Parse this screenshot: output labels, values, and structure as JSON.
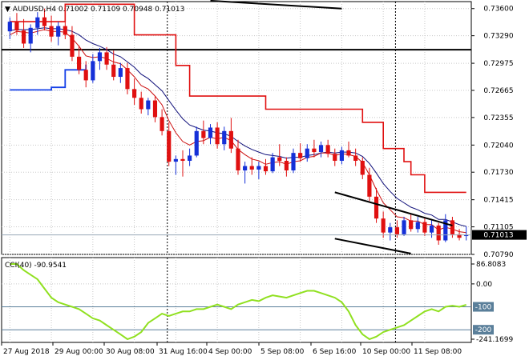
{
  "header": {
    "symbol": "AUDUSD,H4",
    "ohlc": "0.71002 0.71109 0.70948 0.71013"
  },
  "indicator": {
    "name": "CCI(40)",
    "value": "-90.9541",
    "scale_labels": [
      "86.8083",
      "0.00",
      "-100",
      "-200",
      "-241.1699"
    ]
  },
  "price_axis": {
    "labels": [
      "0.73600",
      "0.73290",
      "0.72975",
      "0.72665",
      "0.72355",
      "0.72040",
      "0.71730",
      "0.71415",
      "0.71105",
      "0.70790"
    ],
    "current_price": "0.71013"
  },
  "time_axis": {
    "labels": [
      "27 Aug 2018",
      "29 Aug 00:00",
      "30 Aug 08:00",
      "31 Aug 16:00",
      "4 Sep 00:00",
      "5 Sep 08:00",
      "6 Sep 16:00",
      "10 Sep 00:00",
      "11 Sep 08:00"
    ]
  },
  "colors": {
    "bull": "#1530d8",
    "bear": "#e01010",
    "ma_fast": "#cc1010",
    "ma_slow": "#10107a",
    "stop_red": "#e01010",
    "stop_blue": "#1540e8",
    "cci": "#90e020",
    "level": "#5a7f9a"
  },
  "chart_data": {
    "type": "candlestick",
    "price_range": [
      0.7079,
      0.7368
    ],
    "candles": [
      [
        0.7334,
        0.735,
        0.7325,
        0.7345
      ],
      [
        0.7345,
        0.7355,
        0.733,
        0.7335
      ],
      [
        0.7335,
        0.7348,
        0.7315,
        0.732
      ],
      [
        0.732,
        0.7342,
        0.731,
        0.7338
      ],
      [
        0.7338,
        0.7356,
        0.733,
        0.735
      ],
      [
        0.735,
        0.736,
        0.7335,
        0.734
      ],
      [
        0.734,
        0.7352,
        0.7322,
        0.7328
      ],
      [
        0.7328,
        0.7345,
        0.7318,
        0.734
      ],
      [
        0.734,
        0.7352,
        0.7325,
        0.733
      ],
      [
        0.733,
        0.734,
        0.73,
        0.7305
      ],
      [
        0.7305,
        0.7318,
        0.7285,
        0.729
      ],
      [
        0.729,
        0.73,
        0.727,
        0.7278
      ],
      [
        0.7278,
        0.7308,
        0.7275,
        0.73
      ],
      [
        0.73,
        0.7315,
        0.729,
        0.731
      ],
      [
        0.731,
        0.7316,
        0.729,
        0.7296
      ],
      [
        0.7296,
        0.7312,
        0.7278,
        0.7282
      ],
      [
        0.7282,
        0.7298,
        0.7275,
        0.7292
      ],
      [
        0.7292,
        0.7298,
        0.7262,
        0.7268
      ],
      [
        0.7268,
        0.728,
        0.725,
        0.7258
      ],
      [
        0.7258,
        0.7265,
        0.724,
        0.7245
      ],
      [
        0.7245,
        0.7258,
        0.7238,
        0.7255
      ],
      [
        0.7255,
        0.726,
        0.723,
        0.7236
      ],
      [
        0.7236,
        0.7245,
        0.7215,
        0.722
      ],
      [
        0.722,
        0.723,
        0.718,
        0.7185
      ],
      [
        0.7185,
        0.7192,
        0.717,
        0.7188
      ],
      [
        0.7188,
        0.7198,
        0.7168,
        0.7186
      ],
      [
        0.7186,
        0.72,
        0.718,
        0.7192
      ],
      [
        0.7192,
        0.7225,
        0.719,
        0.722
      ],
      [
        0.722,
        0.7232,
        0.7205,
        0.7212
      ],
      [
        0.7212,
        0.7228,
        0.7205,
        0.7224
      ],
      [
        0.7224,
        0.723,
        0.72,
        0.7205
      ],
      [
        0.7205,
        0.7225,
        0.7198,
        0.722
      ],
      [
        0.722,
        0.7235,
        0.7195,
        0.72
      ],
      [
        0.72,
        0.721,
        0.717,
        0.7175
      ],
      [
        0.7175,
        0.7185,
        0.716,
        0.718
      ],
      [
        0.718,
        0.719,
        0.717,
        0.7176
      ],
      [
        0.7176,
        0.7185,
        0.7165,
        0.718
      ],
      [
        0.718,
        0.7188,
        0.717,
        0.7174
      ],
      [
        0.7174,
        0.7195,
        0.7172,
        0.719
      ],
      [
        0.719,
        0.7205,
        0.718,
        0.7186
      ],
      [
        0.7186,
        0.719,
        0.7168,
        0.7175
      ],
      [
        0.7175,
        0.72,
        0.7172,
        0.7195
      ],
      [
        0.7195,
        0.7206,
        0.7185,
        0.7189
      ],
      [
        0.7189,
        0.7205,
        0.7185,
        0.72
      ],
      [
        0.72,
        0.721,
        0.719,
        0.7196
      ],
      [
        0.7196,
        0.7208,
        0.719,
        0.7204
      ],
      [
        0.7204,
        0.721,
        0.719,
        0.7194
      ],
      [
        0.7194,
        0.72,
        0.718,
        0.7186
      ],
      [
        0.7186,
        0.7202,
        0.7182,
        0.7198
      ],
      [
        0.7198,
        0.7208,
        0.719,
        0.7192
      ],
      [
        0.7192,
        0.72,
        0.718,
        0.7186
      ],
      [
        0.7186,
        0.719,
        0.7165,
        0.717
      ],
      [
        0.717,
        0.7178,
        0.714,
        0.7145
      ],
      [
        0.7145,
        0.7155,
        0.7115,
        0.712
      ],
      [
        0.712,
        0.7128,
        0.7098,
        0.7104
      ],
      [
        0.7104,
        0.7115,
        0.7095,
        0.711
      ],
      [
        0.711,
        0.7118,
        0.7098,
        0.7102
      ],
      [
        0.7102,
        0.7122,
        0.71,
        0.7118
      ],
      [
        0.7118,
        0.7125,
        0.7105,
        0.7108
      ],
      [
        0.7108,
        0.7122,
        0.7104,
        0.7116
      ],
      [
        0.7116,
        0.7122,
        0.71,
        0.7104
      ],
      [
        0.7104,
        0.7118,
        0.7098,
        0.7112
      ],
      [
        0.7112,
        0.7115,
        0.709,
        0.7095
      ],
      [
        0.7095,
        0.7125,
        0.7093,
        0.7118
      ],
      [
        0.7118,
        0.7122,
        0.7098,
        0.7102
      ],
      [
        0.7102,
        0.7108,
        0.7095,
        0.7098
      ],
      [
        0.71,
        0.7111,
        0.7095,
        0.7101
      ]
    ],
    "ma_fast": [
      0.733,
      0.7334,
      0.7333,
      0.7332,
      0.7334,
      0.7336,
      0.7334,
      0.7334,
      0.7333,
      0.7326,
      0.7317,
      0.7306,
      0.7304,
      0.7305,
      0.7303,
      0.7299,
      0.7297,
      0.729,
      0.7282,
      0.7272,
      0.7268,
      0.726,
      0.725,
      0.7232,
      0.7218,
      0.7208,
      0.7204,
      0.7208,
      0.7209,
      0.7213,
      0.7211,
      0.7213,
      0.7209,
      0.7199,
      0.7193,
      0.7188,
      0.7186,
      0.7182,
      0.7184,
      0.7185,
      0.7182,
      0.7185,
      0.7186,
      0.719,
      0.7191,
      0.7195,
      0.7195,
      0.7192,
      0.7194,
      0.7193,
      0.7191,
      0.7184,
      0.717,
      0.7153,
      0.7138,
      0.713,
      0.7122,
      0.7121,
      0.7117,
      0.7117,
      0.7113,
      0.7113,
      0.7107,
      0.711,
      0.7108,
      0.7105,
      0.7104
    ],
    "ma_slow": [
      0.7335,
      0.7336,
      0.7336,
      0.7336,
      0.7337,
      0.7338,
      0.7337,
      0.7337,
      0.7336,
      0.7334,
      0.733,
      0.7324,
      0.732,
      0.7317,
      0.7313,
      0.7308,
      0.7305,
      0.7299,
      0.7293,
      0.7285,
      0.728,
      0.7273,
      0.7266,
      0.7255,
      0.7244,
      0.7234,
      0.7227,
      0.7224,
      0.7221,
      0.722,
      0.7218,
      0.7217,
      0.7214,
      0.7208,
      0.7203,
      0.7199,
      0.7196,
      0.7193,
      0.7192,
      0.7191,
      0.7189,
      0.719,
      0.719,
      0.7192,
      0.7193,
      0.7195,
      0.7196,
      0.7195,
      0.7196,
      0.7196,
      0.7195,
      0.7191,
      0.7183,
      0.7172,
      0.716,
      0.7151,
      0.7143,
      0.7138,
      0.7133,
      0.713,
      0.7126,
      0.7124,
      0.7119,
      0.7119,
      0.7116,
      0.7113,
      0.7111
    ],
    "stop_red": [
      [
        0,
        0.7345
      ],
      [
        8,
        0.7365
      ],
      [
        15,
        0.7365
      ],
      [
        18,
        0.733
      ],
      [
        22,
        0.733
      ],
      [
        24,
        0.7295
      ],
      [
        26,
        0.726
      ],
      [
        36,
        0.726
      ],
      [
        37,
        0.7245
      ],
      [
        49,
        0.7245
      ],
      [
        51,
        0.723
      ],
      [
        54,
        0.72
      ],
      [
        57,
        0.7185
      ],
      [
        58,
        0.717
      ],
      [
        60,
        0.715
      ],
      [
        66,
        0.715
      ]
    ],
    "stop_blue": [
      [
        0,
        0.7267
      ],
      [
        6,
        0.727
      ],
      [
        8,
        0.729
      ],
      [
        10,
        0.729
      ],
      [
        11,
        0.7296
      ]
    ],
    "trend_lines": [
      [
        [
          29,
          0.7369
        ],
        [
          48,
          0.736
        ]
      ],
      [
        [
          47,
          0.7097
        ],
        [
          58,
          0.708
        ]
      ],
      [
        [
          47,
          0.715
        ],
        [
          64,
          0.7112
        ]
      ]
    ],
    "hline_price": 0.7313,
    "vlines": [
      23,
      56
    ],
    "cci_values": [
      86.8,
      86.8,
      60,
      40,
      20,
      -20,
      -60,
      -80,
      -90,
      -100,
      -110,
      -130,
      -150,
      -160,
      -180,
      -200,
      -220,
      -241,
      -230,
      -210,
      -170,
      -150,
      -130,
      -140,
      -130,
      -120,
      -120,
      -110,
      -110,
      -100,
      -90,
      -100,
      -110,
      -90,
      -80,
      -70,
      -75,
      -60,
      -50,
      -55,
      -60,
      -50,
      -40,
      -30,
      -30,
      -40,
      -50,
      -60,
      -80,
      -120,
      -180,
      -220,
      -241,
      -230,
      -210,
      -200,
      -190,
      -180,
      -160,
      -140,
      -120,
      -110,
      -120,
      -100,
      -95,
      -100,
      -91
    ],
    "cci_range": [
      -241.1699,
      86.8083
    ],
    "cci_levels": [
      -100,
      -200
    ]
  }
}
